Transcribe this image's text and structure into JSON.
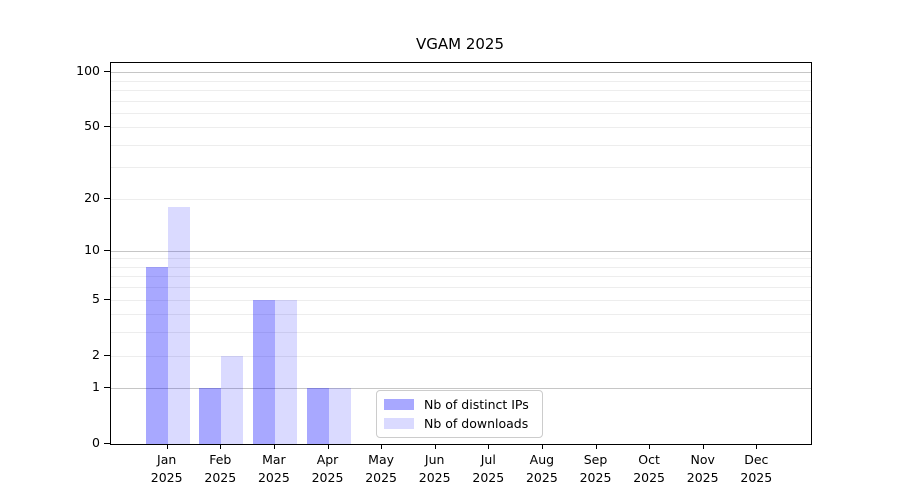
{
  "chart_data": {
    "type": "bar",
    "title": "VGAM 2025",
    "categories": [
      "Jan",
      "Feb",
      "Mar",
      "Apr",
      "May",
      "Jun",
      "Jul",
      "Aug",
      "Sep",
      "Oct",
      "Nov",
      "Dec"
    ],
    "x_year_label": "2025",
    "series": [
      {
        "name": "Nb of distinct IPs",
        "color_hex": "#a9a9f9",
        "fill_rgba": "rgba(0,0,255,0.34)",
        "values": [
          8,
          1,
          5,
          1,
          0,
          0,
          0,
          0,
          0,
          0,
          0,
          0
        ]
      },
      {
        "name": "Nb of downloads",
        "color_hex": "#dadafa",
        "fill_rgba": "rgba(0,0,255,0.145)",
        "values": [
          18,
          2,
          5,
          1,
          0,
          0,
          0,
          0,
          0,
          0,
          0,
          0
        ]
      }
    ],
    "y_axis": {
      "scale": "log10(1+x)",
      "ticks": [
        0,
        1,
        2,
        5,
        10,
        20,
        50,
        100
      ],
      "max": 112,
      "major_gridlines": [
        1,
        10,
        100
      ],
      "minor_gridlines": [
        2,
        3,
        4,
        5,
        6,
        7,
        8,
        9,
        20,
        30,
        40,
        50,
        60,
        70,
        80,
        90
      ]
    },
    "x_axis": {
      "label": ""
    },
    "legend": {
      "position": "lower-center",
      "entries": [
        "Nb of distinct IPs",
        "Nb of downloads"
      ]
    },
    "grid": true,
    "colors": {
      "major_grid": "#c6c6c6",
      "minor_grid": "#ededed",
      "axis": "#000000",
      "legend_border": "#cccccc",
      "background": "#ffffff",
      "text": "#000000"
    }
  }
}
